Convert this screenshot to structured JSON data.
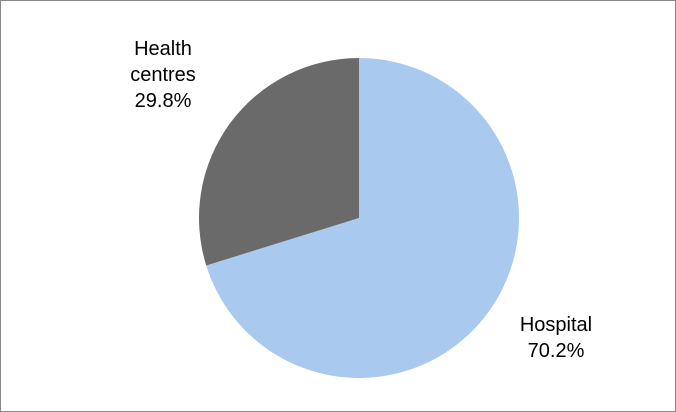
{
  "chart_data": {
    "type": "pie",
    "categories": [
      "Hospital",
      "Health centres"
    ],
    "values": [
      70.2,
      29.8
    ],
    "value_labels": [
      "70.2%",
      "29.8%"
    ],
    "colors": [
      "#a9c9ef",
      "#6a6a6a"
    ]
  }
}
